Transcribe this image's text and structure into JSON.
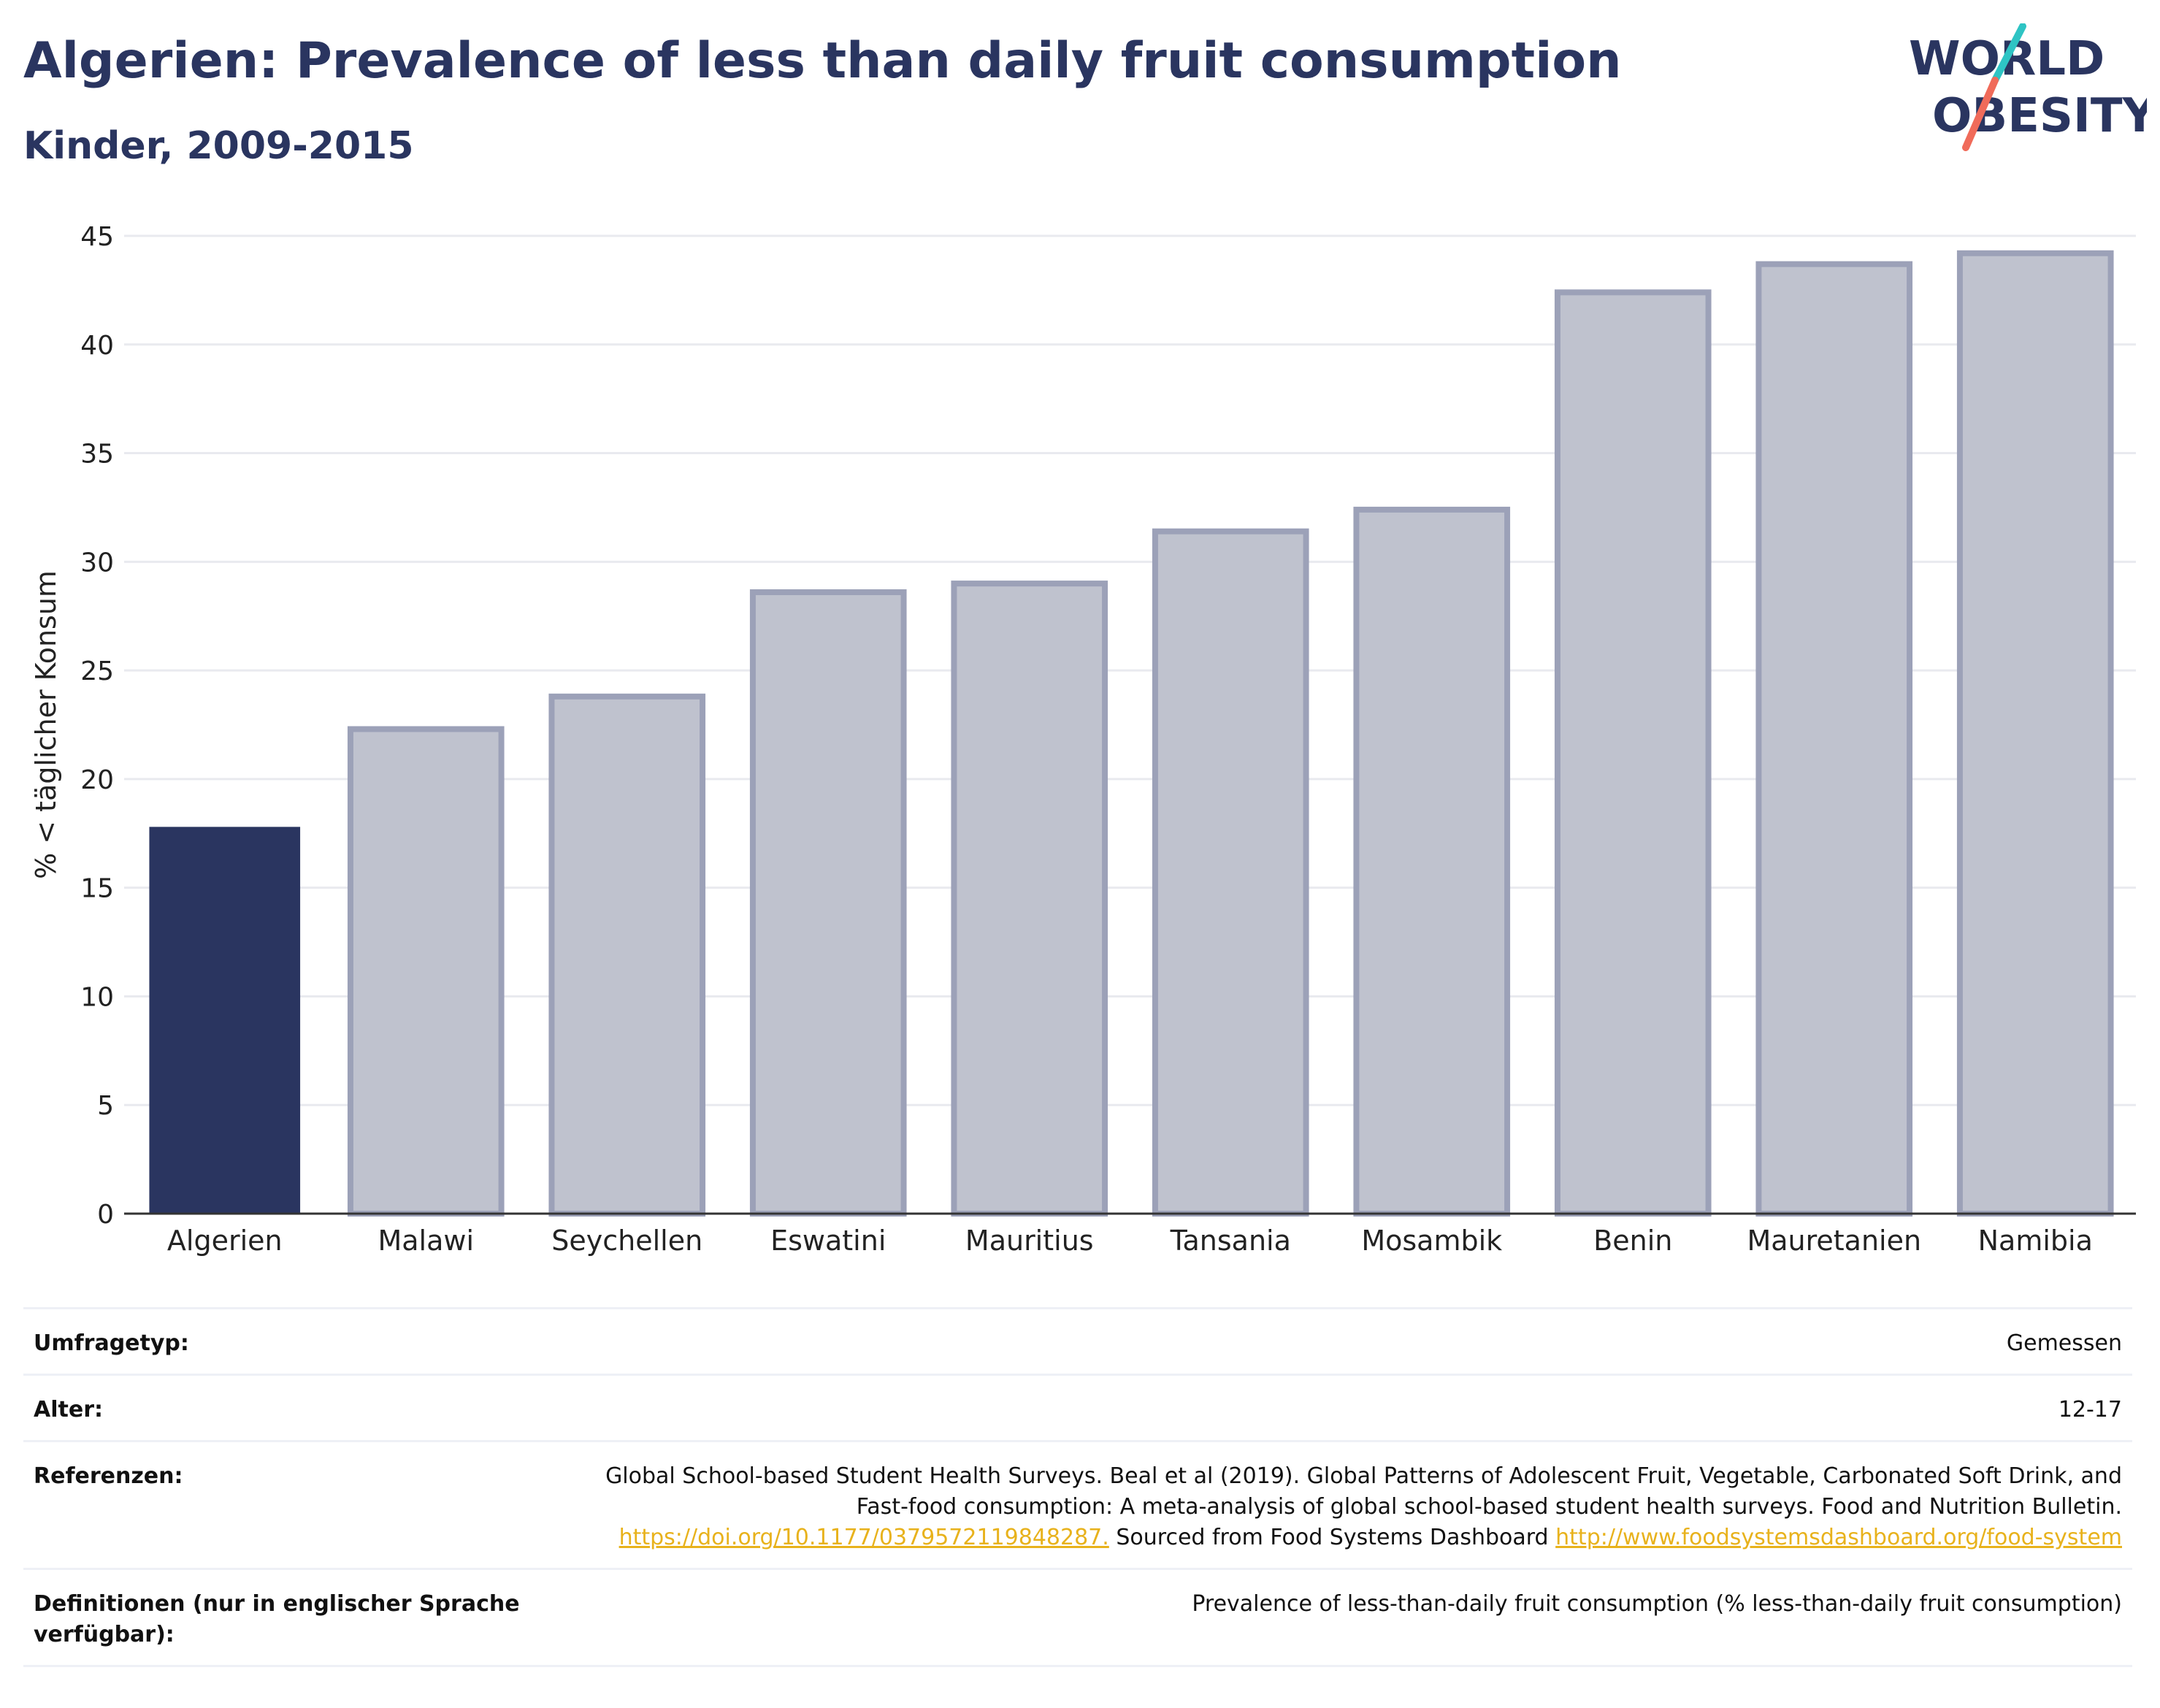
{
  "header": {
    "title": "Algerien: Prevalence of less than daily fruit consumption",
    "subtitle": "Kinder, 2009-2015"
  },
  "logo": {
    "line1": "WORLD",
    "line2": "OBESITY",
    "accent_colors": [
      "#2ec4c4",
      "#f06b5a"
    ]
  },
  "chart_data": {
    "type": "bar",
    "categories": [
      "Algerien",
      "Malawi",
      "Seychellen",
      "Eswatini",
      "Mauritius",
      "Tansania",
      "Mosambik",
      "Benin",
      "Mauretanien",
      "Namibia"
    ],
    "values": [
      17.8,
      22.3,
      23.8,
      28.6,
      29.0,
      31.4,
      32.4,
      42.4,
      43.7,
      44.2
    ],
    "highlight_index": 0,
    "ylabel": "% < täglicher Konsum",
    "ylim": [
      0,
      45
    ],
    "yticks": [
      0,
      5,
      10,
      15,
      20,
      25,
      30,
      35,
      40,
      45
    ],
    "grid": true,
    "colors": {
      "highlight": "#2a3560",
      "other": "#bfc2ce",
      "other_border": "#9ca1b8"
    }
  },
  "info": {
    "rows": [
      {
        "key": "Umfragetyp:",
        "value": "Gemessen"
      },
      {
        "key": "Alter:",
        "value": "12-17"
      },
      {
        "key": "Referenzen:",
        "value_text1": "Global School-based Student Health Surveys. Beal et al (2019). Global Patterns of Adolescent Fruit, Vegetable, Carbonated Soft Drink, and Fast-food consumption: A meta-analysis of global school-based student health surveys. Food and Nutrition Bulletin.",
        "link1": "https://doi.org/10.1177/0379572119848287.",
        "value_text2": "Sourced from Food Systems Dashboard",
        "link2": "http://www.foodsystemsdashboard.org/food-system"
      },
      {
        "key": "Definitionen (nur in englischer Sprache verfügbar):",
        "value": "Prevalence of less-than-daily fruit consumption (% less-than-daily fruit consumption)"
      }
    ]
  }
}
